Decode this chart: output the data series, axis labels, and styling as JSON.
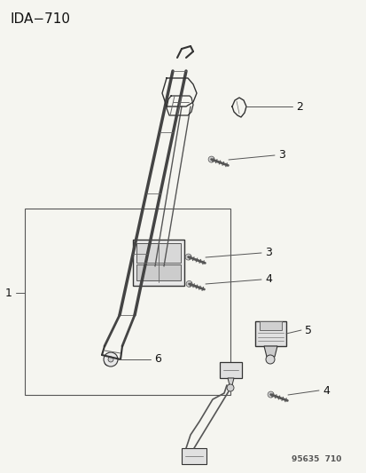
{
  "title": "IDA−710",
  "watermark": "95635  710",
  "bg_color": "#f5f5f0",
  "line_color": "#333333",
  "label_color": "#111111",
  "fig_width": 4.14,
  "fig_height": 5.33,
  "dpi": 100
}
